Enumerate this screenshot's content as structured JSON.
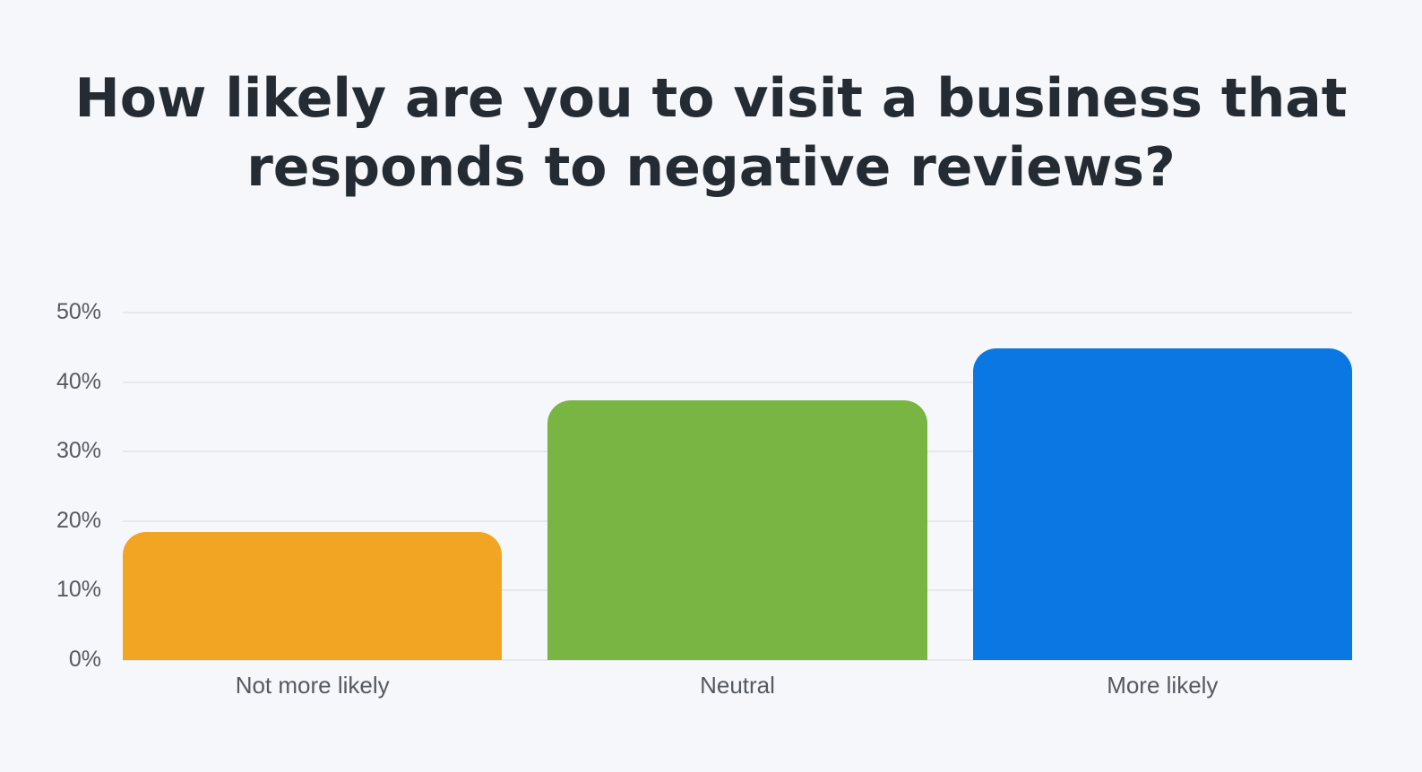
{
  "chart_data": {
    "type": "bar",
    "title": "How likely are you to visit a business that responds to negative reviews?",
    "title_lines": [
      "How likely are you to visit a business that",
      "responds to negative reviews?"
    ],
    "categories": [
      "Not more likely",
      "Neutral",
      "More likely"
    ],
    "values": [
      18.4,
      37.4,
      44.8
    ],
    "colors": [
      "#f2a523",
      "#78b543",
      "#0b77e3"
    ],
    "xlabel": "",
    "ylabel": "",
    "ylim": [
      0,
      50
    ],
    "yticks": [
      "0%",
      "10%",
      "20%",
      "30%",
      "40%",
      "50%"
    ],
    "grid": true,
    "legend": "none"
  }
}
